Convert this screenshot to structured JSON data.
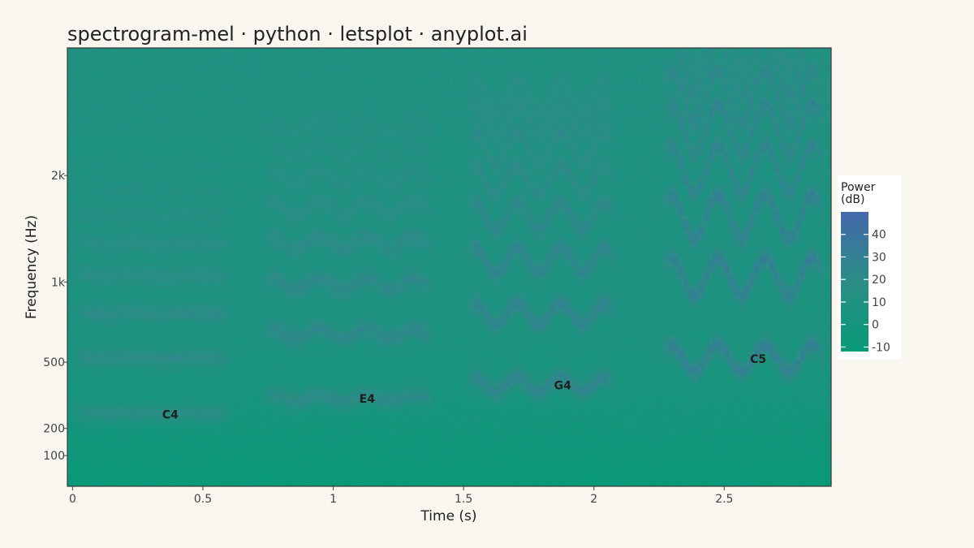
{
  "chart_data": {
    "type": "heatmap",
    "title": "spectrogram-mel · python · letsplot · anyplot.ai",
    "xlabel": "Time (s)",
    "ylabel": "Frequency (Hz)",
    "x_scale": "linear",
    "y_scale": "mel",
    "xlim": [
      -0.02,
      2.91
    ],
    "ylim_hz": [
      0,
      4000
    ],
    "x_ticks": [
      {
        "value": 0,
        "label": "0"
      },
      {
        "value": 0.5,
        "label": "0.5"
      },
      {
        "value": 1,
        "label": "1"
      },
      {
        "value": 1.5,
        "label": "1.5"
      },
      {
        "value": 2,
        "label": "2"
      },
      {
        "value": 2.5,
        "label": "2.5"
      }
    ],
    "y_ticks": [
      {
        "value": 100,
        "label": "100"
      },
      {
        "value": 200,
        "label": "200"
      },
      {
        "value": 500,
        "label": "500"
      },
      {
        "value": 1000,
        "label": "1k"
      },
      {
        "value": 2000,
        "label": "2k"
      }
    ],
    "colorbar": {
      "title": "Power\n(dB)",
      "range": [
        -12,
        50
      ],
      "ticks": [
        -10,
        0,
        10,
        20,
        30,
        40
      ],
      "low_color": "#079a76",
      "mid_color": "#2b8e86",
      "high_color": "#4367ab"
    },
    "background_level_db": 8,
    "notes": [
      {
        "label": "C4",
        "t_start": 0.0,
        "t_end": 0.62,
        "f0_hz": 262,
        "vibrato_rate_hz": 5,
        "vibrato_depth": 0.012,
        "power_db": 26
      },
      {
        "label": "E4",
        "t_start": 0.72,
        "t_end": 1.4,
        "f0_hz": 330,
        "vibrato_rate_hz": 5.5,
        "vibrato_depth": 0.045,
        "power_db": 28
      },
      {
        "label": "G4",
        "t_start": 1.5,
        "t_end": 2.1,
        "f0_hz": 392,
        "vibrato_rate_hz": 6,
        "vibrato_depth": 0.09,
        "power_db": 31
      },
      {
        "label": "C5",
        "t_start": 2.25,
        "t_end": 2.9,
        "f0_hz": 523,
        "vibrato_rate_hz": 5.5,
        "vibrato_depth": 0.14,
        "power_db": 34
      }
    ],
    "annotations": [
      {
        "text": "C4",
        "x": 0.375,
        "y_hz": 256
      },
      {
        "text": "E4",
        "x": 1.13,
        "y_hz": 325
      },
      {
        "text": "G4",
        "x": 1.88,
        "y_hz": 386
      },
      {
        "text": "C5",
        "x": 2.63,
        "y_hz": 518
      }
    ],
    "grid": false,
    "legend": "right"
  }
}
